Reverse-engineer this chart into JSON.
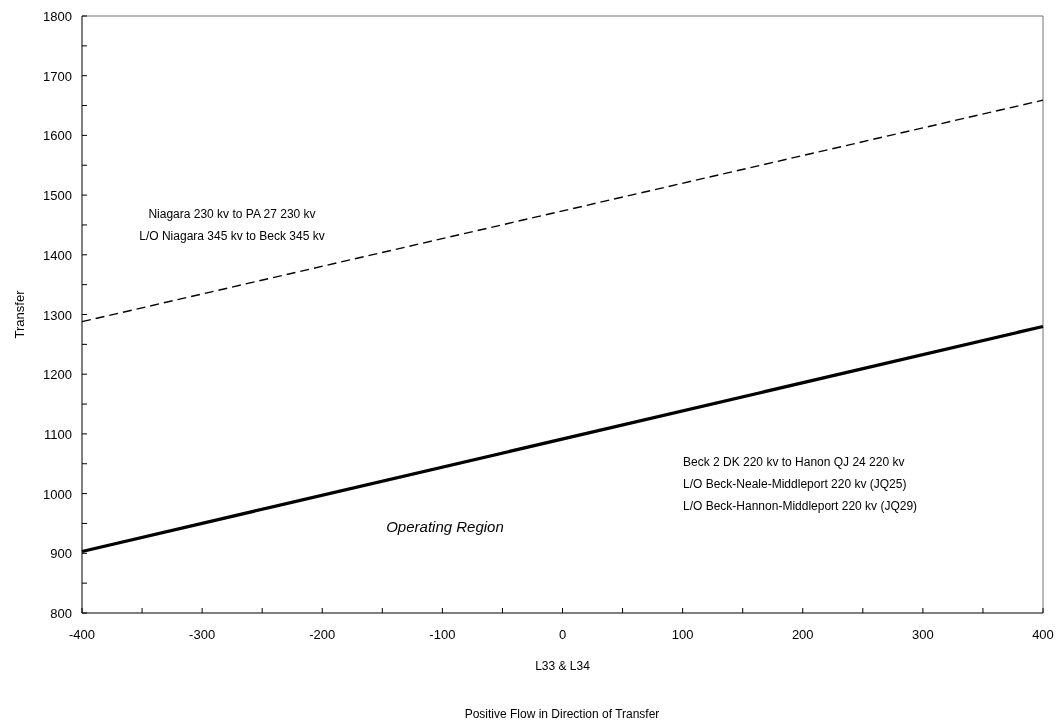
{
  "chart_data": {
    "type": "line",
    "xlabel": "L33 & L34",
    "ylabel": "Transfer",
    "xlim": [
      -400,
      400
    ],
    "ylim": [
      800,
      1800
    ],
    "xticks": [
      -400,
      {
        "value": -350,
        "label": null
      },
      -300,
      {
        "value": -250,
        "label": null
      },
      -200,
      {
        "value": -150,
        "label": null
      },
      -100,
      {
        "value": -50,
        "label": null
      },
      0,
      {
        "value": 50,
        "label": null
      },
      100,
      {
        "value": 150,
        "label": null
      },
      200,
      {
        "value": 250,
        "label": null
      },
      300,
      {
        "value": 350,
        "label": null
      },
      400
    ],
    "yticks": [
      800,
      {
        "value": 850,
        "label": null
      },
      900,
      {
        "value": 950,
        "label": null
      },
      1000,
      {
        "value": 1050,
        "label": null
      },
      1100,
      {
        "value": 1150,
        "label": null
      },
      1200,
      {
        "value": 1250,
        "label": null
      },
      1300,
      {
        "value": 1350,
        "label": null
      },
      1400,
      {
        "value": 1450,
        "label": null
      },
      1500,
      {
        "value": 1550,
        "label": null
      },
      1600,
      {
        "value": 1650,
        "label": null
      },
      1700,
      {
        "value": 1750,
        "label": null
      },
      1800
    ],
    "grid": false,
    "marker": "none",
    "x": [
      -400,
      400
    ],
    "series": [
      {
        "color": "#000000",
        "line_style": "dashed",
        "values": [
          1288,
          1659
        ]
      },
      {
        "color": "#000000",
        "line_style": "solid",
        "values": [
          903,
          1280
        ]
      }
    ],
    "annotations": [
      "Niagara 230 kv to PA 27 230 kv\nL/O Niagara 345 kv to Beck 345 kv",
      "Beck 2 DK 220 kv to Hanon QJ 24 220 kv\nL/O Beck-Neale-Middleport 220 kv (JQ25)\nL/O Beck-Hannon-Middleport 220 kv (JQ29)",
      "Operating Region",
      "Positive Flow in Direction of Transfer"
    ]
  }
}
